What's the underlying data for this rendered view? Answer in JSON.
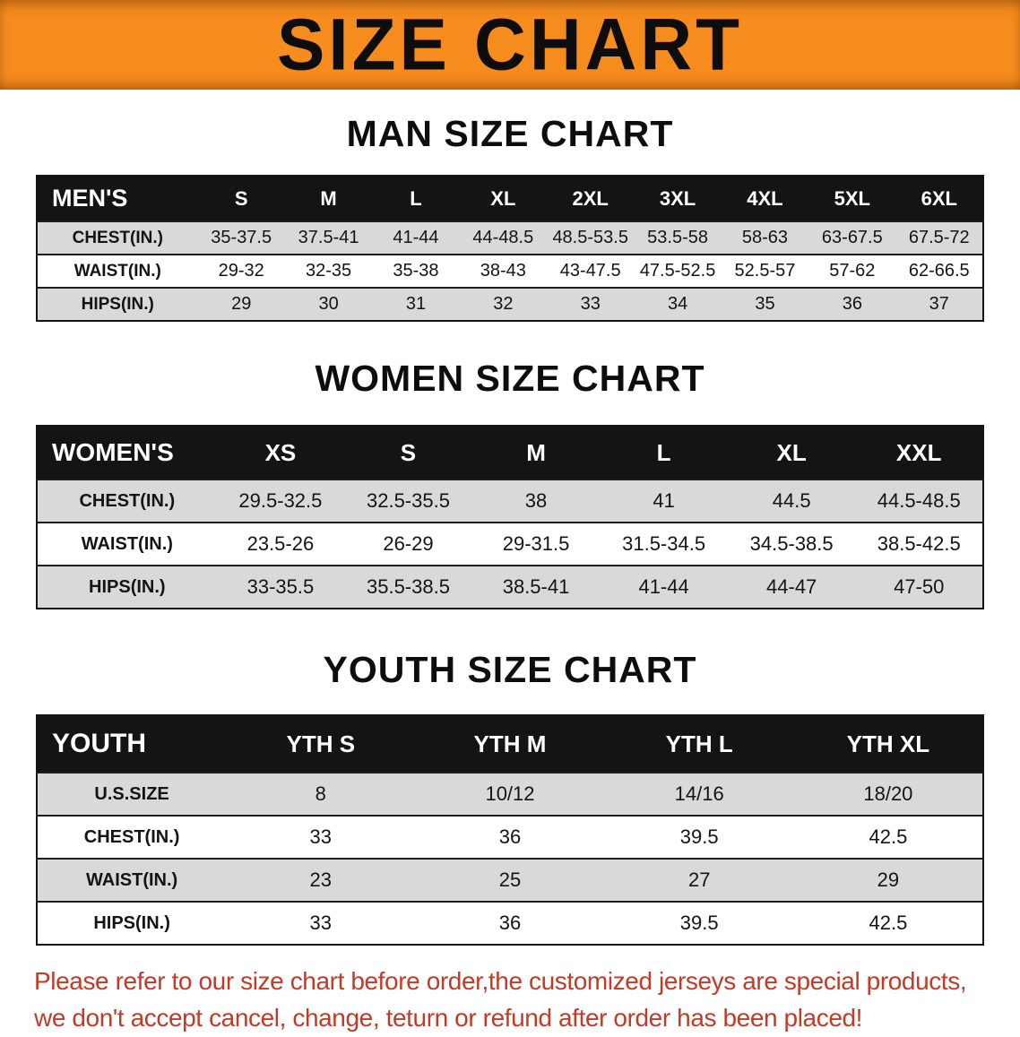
{
  "banner": {
    "title": "SIZE CHART",
    "bg_color": "#f68b1e",
    "text_color": "#0d0d0d"
  },
  "sections": {
    "men": {
      "heading": "MAN SIZE CHART",
      "table": {
        "header": [
          "MEN'S",
          "S",
          "M",
          "L",
          "XL",
          "2XL",
          "3XL",
          "4XL",
          "5XL",
          "6XL"
        ],
        "rows": [
          [
            "CHEST(IN.)",
            "35-37.5",
            "37.5-41",
            "41-44",
            "44-48.5",
            "48.5-53.5",
            "53.5-58",
            "58-63",
            "63-67.5",
            "67.5-72"
          ],
          [
            "WAIST(IN.)",
            "29-32",
            "32-35",
            "35-38",
            "38-43",
            "43-47.5",
            "47.5-52.5",
            "52.5-57",
            "57-62",
            "62-66.5"
          ],
          [
            "HIPS(IN.)",
            "29",
            "30",
            "31",
            "32",
            "33",
            "34",
            "35",
            "36",
            "37"
          ]
        ]
      }
    },
    "women": {
      "heading": "WOMEN SIZE CHART",
      "table": {
        "header": [
          "WOMEN'S",
          "XS",
          "S",
          "M",
          "L",
          "XL",
          "XXL"
        ],
        "rows": [
          [
            "CHEST(IN.)",
            "29.5-32.5",
            "32.5-35.5",
            "38",
            "41",
            "44.5",
            "44.5-48.5"
          ],
          [
            "WAIST(IN.)",
            "23.5-26",
            "26-29",
            "29-31.5",
            "31.5-34.5",
            "34.5-38.5",
            "38.5-42.5"
          ],
          [
            "HIPS(IN.)",
            "33-35.5",
            "35.5-38.5",
            "38.5-41",
            "41-44",
            "44-47",
            "47-50"
          ]
        ]
      }
    },
    "youth": {
      "heading": "YOUTH SIZE CHART",
      "table": {
        "header": [
          "YOUTH",
          "YTH S",
          "YTH M",
          "YTH L",
          "YTH XL"
        ],
        "rows": [
          [
            "U.S.SIZE",
            "8",
            "10/12",
            "14/16",
            "18/20"
          ],
          [
            "CHEST(IN.)",
            "33",
            "36",
            "39.5",
            "42.5"
          ],
          [
            "WAIST(IN.)",
            "23",
            "25",
            "27",
            "29"
          ],
          [
            "HIPS(IN.)",
            "33",
            "36",
            "39.5",
            "42.5"
          ]
        ]
      }
    }
  },
  "footer": {
    "color": "#c23b28",
    "lines": [
      "Please refer to our size chart before order,the customized jerseys are special products,",
      "we don't accept cancel, change, teturn or refund after order has been placed!"
    ]
  }
}
